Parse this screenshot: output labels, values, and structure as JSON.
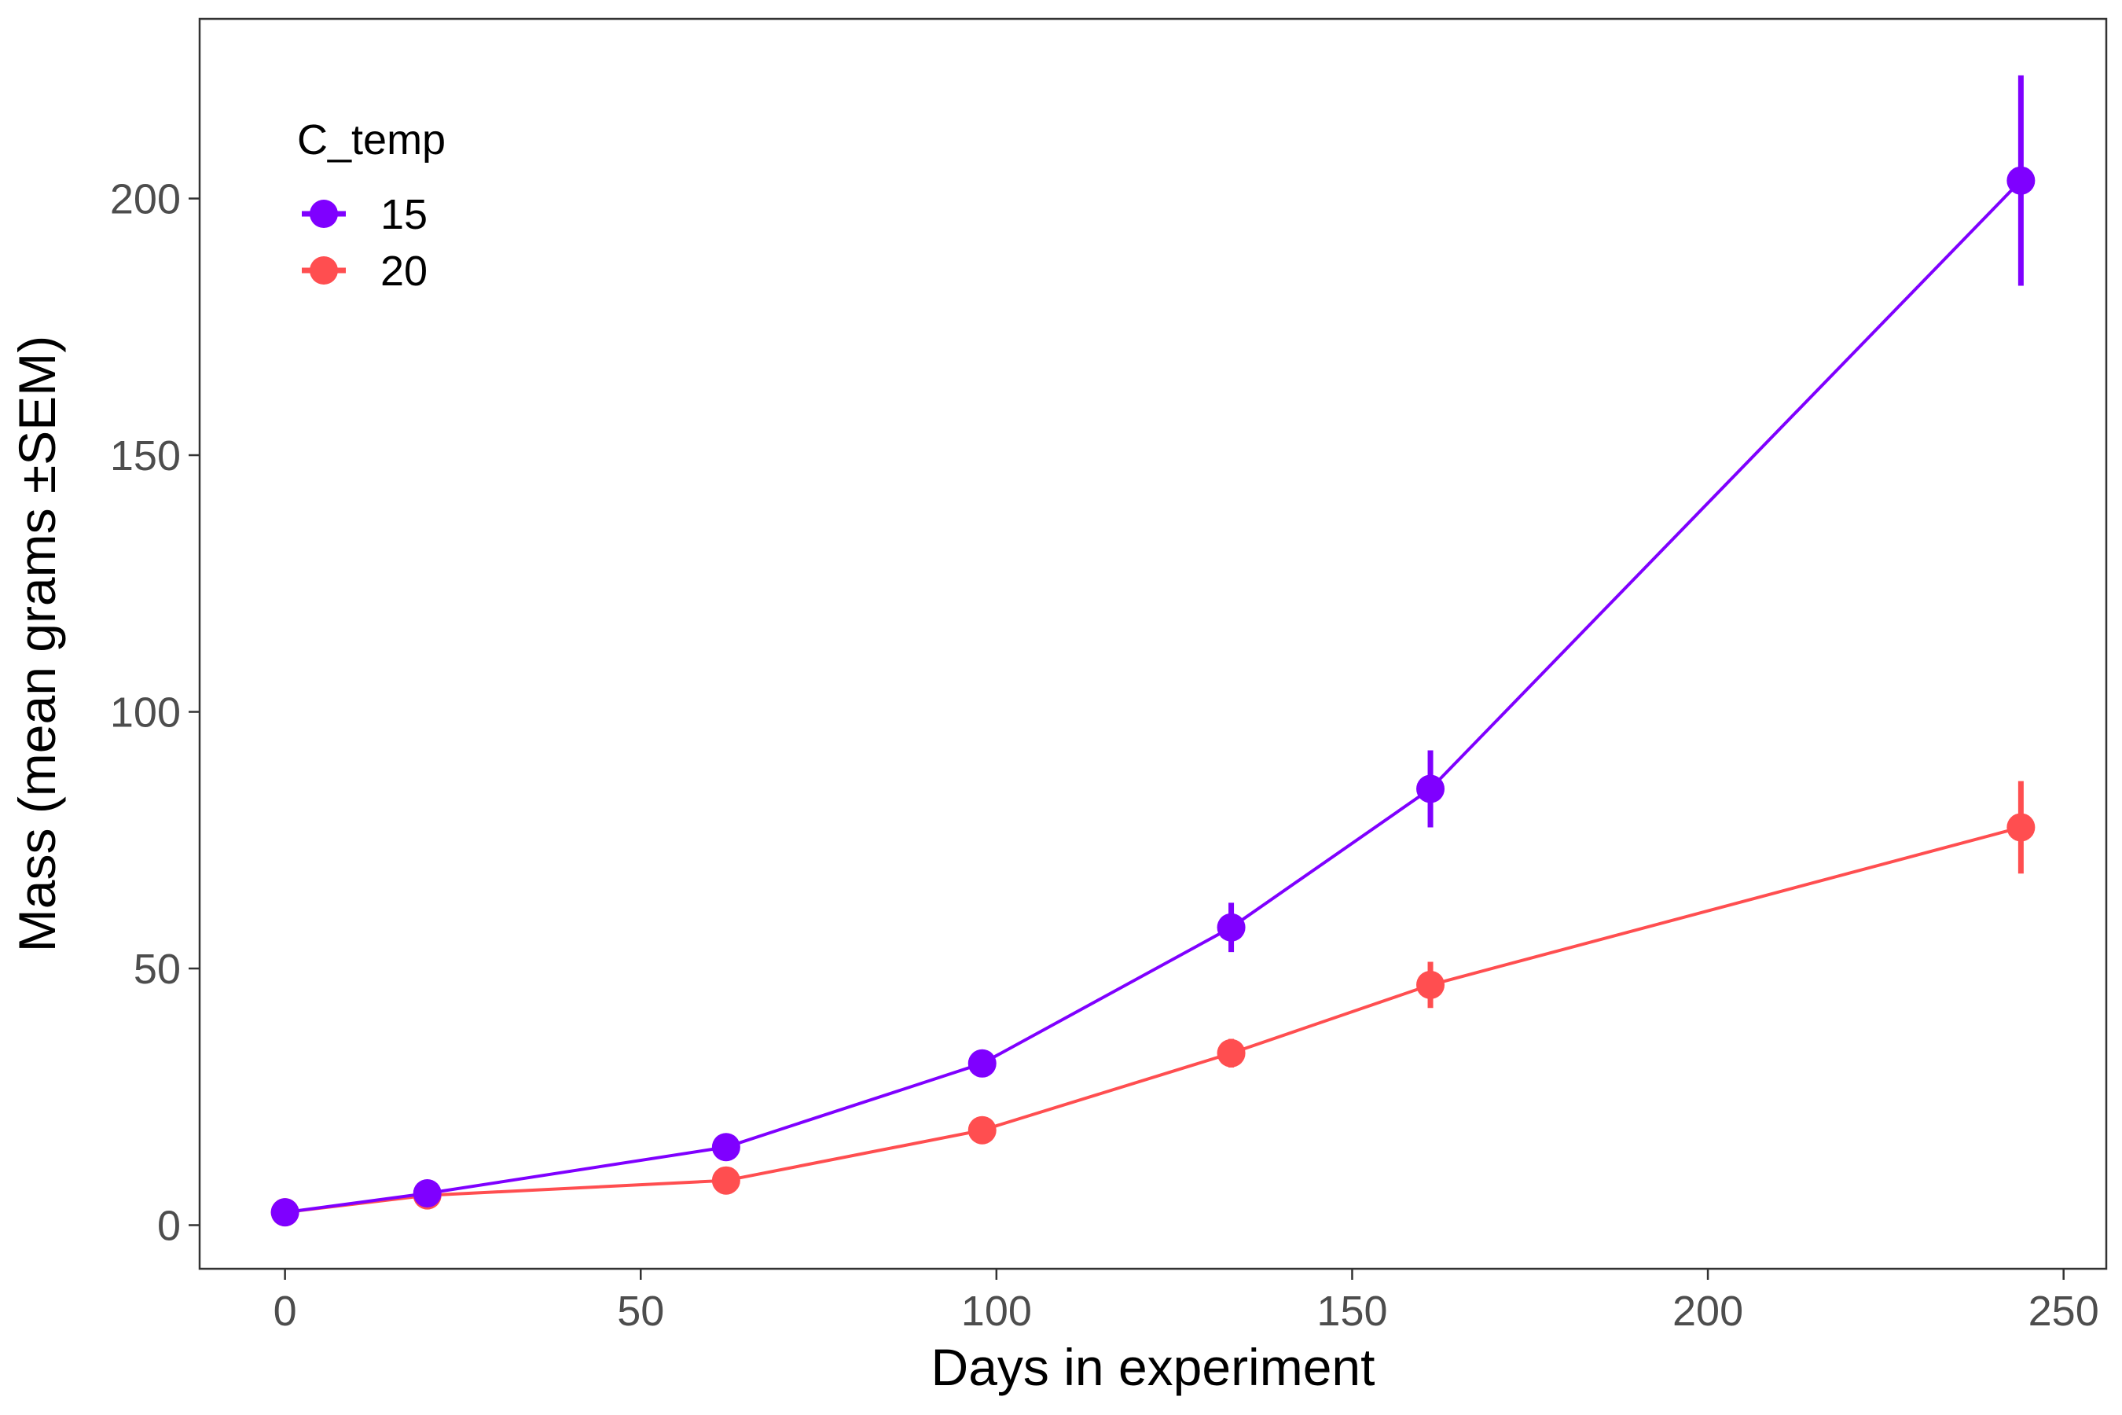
{
  "chart_data": {
    "type": "line",
    "xlabel": "Days in experiment",
    "ylabel": "Mass (mean grams ±SEM)",
    "xlim": [
      -12,
      256
    ],
    "ylim": [
      -8.5,
      235
    ],
    "x_ticks": [
      0,
      50,
      100,
      150,
      200,
      250
    ],
    "y_ticks": [
      0,
      50,
      100,
      150,
      200
    ],
    "grid": false,
    "legend": {
      "title": "C_temp",
      "placement": "top-left"
    },
    "series": [
      {
        "name": "15",
        "color": "#7F00FF",
        "x": [
          0,
          20,
          62,
          98,
          133,
          161,
          244
        ],
        "y": [
          2.5,
          6.2,
          15.2,
          31.5,
          58.0,
          85.0,
          203.5
        ],
        "sem": [
          0.3,
          0.5,
          0.8,
          1.2,
          4.8,
          7.5,
          20.5
        ]
      },
      {
        "name": "20",
        "color": "#FF4E50",
        "x": [
          0,
          20,
          62,
          98,
          133,
          161,
          244
        ],
        "y": [
          2.5,
          5.8,
          8.7,
          18.5,
          33.5,
          46.8,
          77.5
        ],
        "sem": [
          0.2,
          0.4,
          0.6,
          1.0,
          2.8,
          4.5,
          9.0
        ]
      }
    ]
  }
}
